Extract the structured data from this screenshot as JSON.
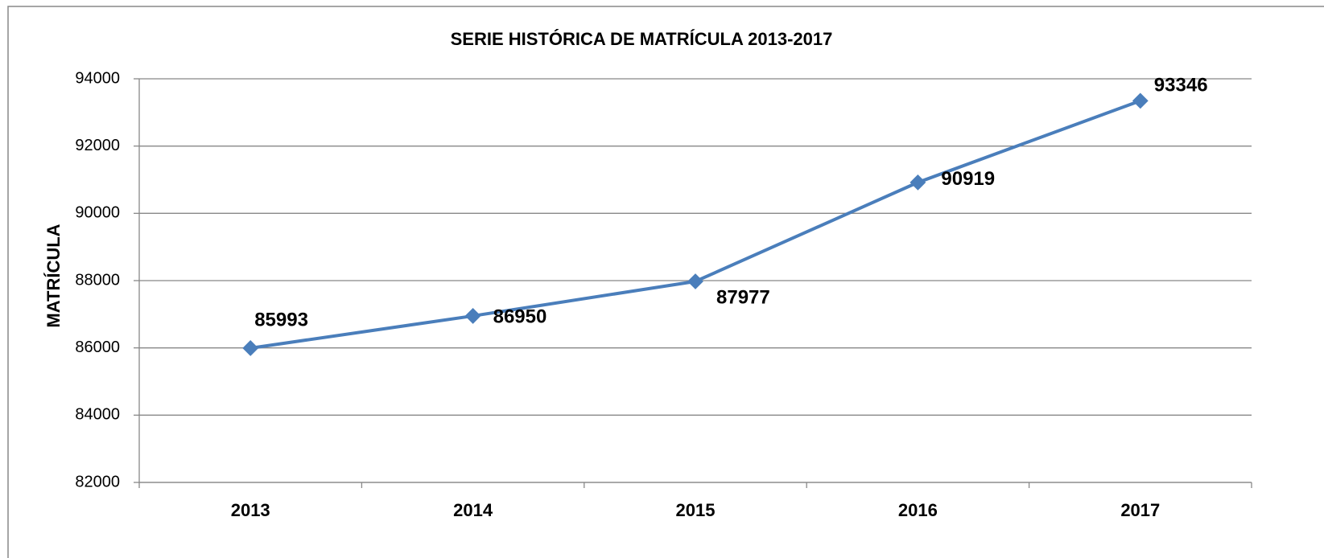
{
  "chart_data": {
    "type": "line",
    "title": "SERIE HISTÓRICA DE MATRÍCULA 2013-2017",
    "ylabel": "MATRÍCULA",
    "categories": [
      "2013",
      "2014",
      "2015",
      "2016",
      "2017"
    ],
    "series": [
      {
        "name": "MATRÍCULA",
        "color": "#4a7ebb",
        "values": [
          85993,
          86950,
          87977,
          90919,
          93346
        ]
      }
    ],
    "ylim": [
      82000,
      94000
    ],
    "yticks": [
      82000,
      84000,
      86000,
      88000,
      90000,
      92000,
      94000
    ],
    "grid": true
  }
}
